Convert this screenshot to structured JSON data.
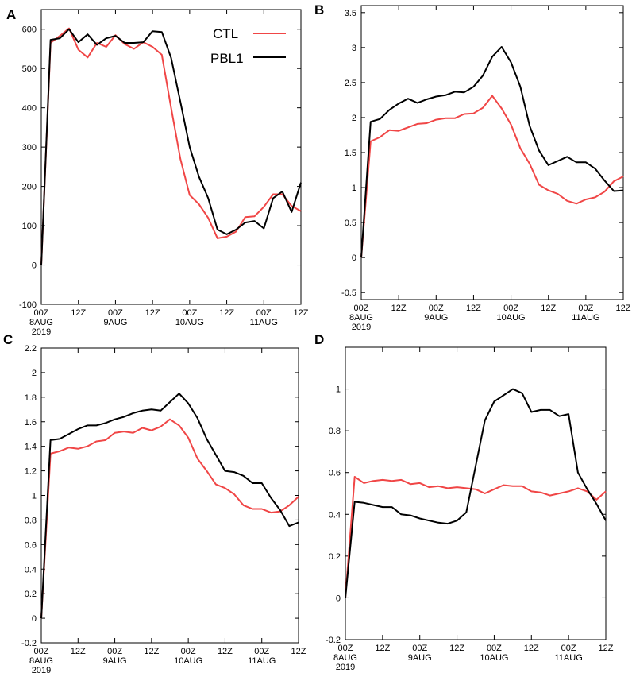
{
  "chart_data": [
    {
      "type": "line",
      "panel": "A",
      "ylim": [
        -100,
        650
      ],
      "yticks": [
        -100,
        0,
        100,
        200,
        300,
        400,
        500,
        600
      ],
      "xlim": [
        0,
        84
      ],
      "x_step": 3,
      "xticks": [
        {
          "x": 0,
          "lines": [
            "00Z",
            "8AUG",
            "2019"
          ]
        },
        {
          "x": 12,
          "lines": [
            "12Z"
          ]
        },
        {
          "x": 24,
          "lines": [
            "00Z",
            "9AUG"
          ]
        },
        {
          "x": 36,
          "lines": [
            "12Z"
          ]
        },
        {
          "x": 48,
          "lines": [
            "00Z",
            "10AUG"
          ]
        },
        {
          "x": 60,
          "lines": [
            "12Z"
          ]
        },
        {
          "x": 72,
          "lines": [
            "00Z",
            "11AUG"
          ]
        },
        {
          "x": 84,
          "lines": [
            "12Z"
          ]
        }
      ],
      "legend": {
        "position": "top-right",
        "entries": [
          "CTL",
          "PBL1"
        ]
      },
      "series": [
        {
          "name": "CTL",
          "color": "#f04646",
          "values": [
            0,
            565,
            583,
            602,
            548,
            528,
            565,
            555,
            585,
            562,
            550,
            567,
            555,
            535,
            400,
            270,
            178,
            155,
            120,
            68,
            72,
            85,
            122,
            124,
            148,
            180,
            180,
            150,
            137
          ]
        },
        {
          "name": "PBL1",
          "color": "#000000",
          "values": [
            0,
            573,
            577,
            600,
            567,
            587,
            560,
            577,
            583,
            565,
            565,
            567,
            595,
            593,
            527,
            415,
            300,
            225,
            170,
            90,
            78,
            90,
            108,
            112,
            93,
            170,
            187,
            135,
            210
          ]
        }
      ]
    },
    {
      "type": "line",
      "panel": "B",
      "ylim": [
        -0.6,
        3.6
      ],
      "yticks": [
        -0.5,
        0,
        0.5,
        1,
        1.5,
        2,
        2.5,
        3,
        3.5
      ],
      "xlim": [
        0,
        84
      ],
      "x_step": 3,
      "xticks": [
        {
          "x": 0,
          "lines": [
            "00Z",
            "8AUG",
            "2019"
          ]
        },
        {
          "x": 12,
          "lines": [
            "12Z"
          ]
        },
        {
          "x": 24,
          "lines": [
            "00Z",
            "9AUG"
          ]
        },
        {
          "x": 36,
          "lines": [
            "12Z"
          ]
        },
        {
          "x": 48,
          "lines": [
            "00Z",
            "10AUG"
          ]
        },
        {
          "x": 60,
          "lines": [
            "12Z"
          ]
        },
        {
          "x": 72,
          "lines": [
            "00Z",
            "11AUG"
          ]
        },
        {
          "x": 84,
          "lines": [
            "12Z"
          ]
        }
      ],
      "series": [
        {
          "name": "CTL",
          "color": "#f04646",
          "values": [
            0,
            1.66,
            1.72,
            1.82,
            1.81,
            1.86,
            1.91,
            1.92,
            1.97,
            1.99,
            1.99,
            2.05,
            2.06,
            2.14,
            2.31,
            2.13,
            1.9,
            1.56,
            1.34,
            1.04,
            0.96,
            0.91,
            0.81,
            0.77,
            0.83,
            0.86,
            0.94,
            1.09,
            1.16
          ]
        },
        {
          "name": "PBL1",
          "color": "#000000",
          "values": [
            0,
            1.94,
            1.98,
            2.11,
            2.2,
            2.27,
            2.21,
            2.26,
            2.3,
            2.32,
            2.37,
            2.36,
            2.44,
            2.6,
            2.87,
            3.01,
            2.79,
            2.44,
            1.88,
            1.53,
            1.32,
            1.38,
            1.44,
            1.36,
            1.36,
            1.27,
            1.1,
            0.95,
            0.96
          ]
        }
      ]
    },
    {
      "type": "line",
      "panel": "C",
      "ylim": [
        -0.2,
        2.2
      ],
      "yticks": [
        -0.2,
        0,
        0.2,
        0.4,
        0.6,
        0.8,
        1,
        1.2,
        1.4,
        1.6,
        1.8,
        2,
        2.2
      ],
      "xlim": [
        0,
        84
      ],
      "x_step": 3,
      "xticks": [
        {
          "x": 0,
          "lines": [
            "00Z",
            "8AUG",
            "2019"
          ]
        },
        {
          "x": 12,
          "lines": [
            "12Z"
          ]
        },
        {
          "x": 24,
          "lines": [
            "00Z",
            "9AUG"
          ]
        },
        {
          "x": 36,
          "lines": [
            "12Z"
          ]
        },
        {
          "x": 48,
          "lines": [
            "00Z",
            "10AUG"
          ]
        },
        {
          "x": 60,
          "lines": [
            "12Z"
          ]
        },
        {
          "x": 72,
          "lines": [
            "00Z",
            "11AUG"
          ]
        },
        {
          "x": 84,
          "lines": [
            "12Z"
          ]
        }
      ],
      "series": [
        {
          "name": "CTL",
          "color": "#f04646",
          "values": [
            0,
            1.34,
            1.36,
            1.39,
            1.38,
            1.4,
            1.44,
            1.45,
            1.51,
            1.52,
            1.51,
            1.55,
            1.53,
            1.56,
            1.62,
            1.57,
            1.47,
            1.3,
            1.2,
            1.09,
            1.06,
            1.01,
            0.92,
            0.89,
            0.89,
            0.86,
            0.87,
            0.92,
            0.99
          ]
        },
        {
          "name": "PBL1",
          "color": "#000000",
          "values": [
            0,
            1.45,
            1.46,
            1.5,
            1.54,
            1.57,
            1.57,
            1.59,
            1.62,
            1.64,
            1.67,
            1.69,
            1.7,
            1.69,
            1.76,
            1.83,
            1.75,
            1.63,
            1.46,
            1.33,
            1.2,
            1.19,
            1.16,
            1.1,
            1.1,
            0.98,
            0.88,
            0.75,
            0.78
          ]
        }
      ]
    },
    {
      "type": "line",
      "panel": "D",
      "ylim": [
        -0.2,
        1.2
      ],
      "yticks": [
        -0.2,
        0,
        0.2,
        0.4,
        0.6,
        0.8,
        1
      ],
      "xlim": [
        0,
        84
      ],
      "x_step": 3,
      "xticks": [
        {
          "x": 0,
          "lines": [
            "00Z",
            "8AUG",
            "2019"
          ]
        },
        {
          "x": 12,
          "lines": [
            "12Z"
          ]
        },
        {
          "x": 24,
          "lines": [
            "00Z",
            "9AUG"
          ]
        },
        {
          "x": 36,
          "lines": [
            "12Z"
          ]
        },
        {
          "x": 48,
          "lines": [
            "00Z",
            "10AUG"
          ]
        },
        {
          "x": 60,
          "lines": [
            "12Z"
          ]
        },
        {
          "x": 72,
          "lines": [
            "00Z",
            "11AUG"
          ]
        },
        {
          "x": 84,
          "lines": [
            "12Z"
          ]
        }
      ],
      "series": [
        {
          "name": "CTL",
          "color": "#f04646",
          "values": [
            0,
            0.58,
            0.55,
            0.56,
            0.565,
            0.56,
            0.565,
            0.545,
            0.55,
            0.53,
            0.535,
            0.525,
            0.53,
            0.525,
            0.52,
            0.5,
            0.52,
            0.54,
            0.535,
            0.535,
            0.51,
            0.505,
            0.49,
            0.5,
            0.51,
            0.525,
            0.51,
            0.47,
            0.51
          ]
        },
        {
          "name": "PBL1",
          "color": "#000000",
          "values": [
            0,
            0.46,
            0.455,
            0.445,
            0.435,
            0.435,
            0.4,
            0.395,
            0.38,
            0.37,
            0.36,
            0.355,
            0.37,
            0.41,
            0.63,
            0.85,
            0.94,
            0.97,
            1.0,
            0.98,
            0.89,
            0.9,
            0.9,
            0.87,
            0.88,
            0.6,
            0.52,
            0.45,
            0.37
          ]
        }
      ]
    }
  ]
}
